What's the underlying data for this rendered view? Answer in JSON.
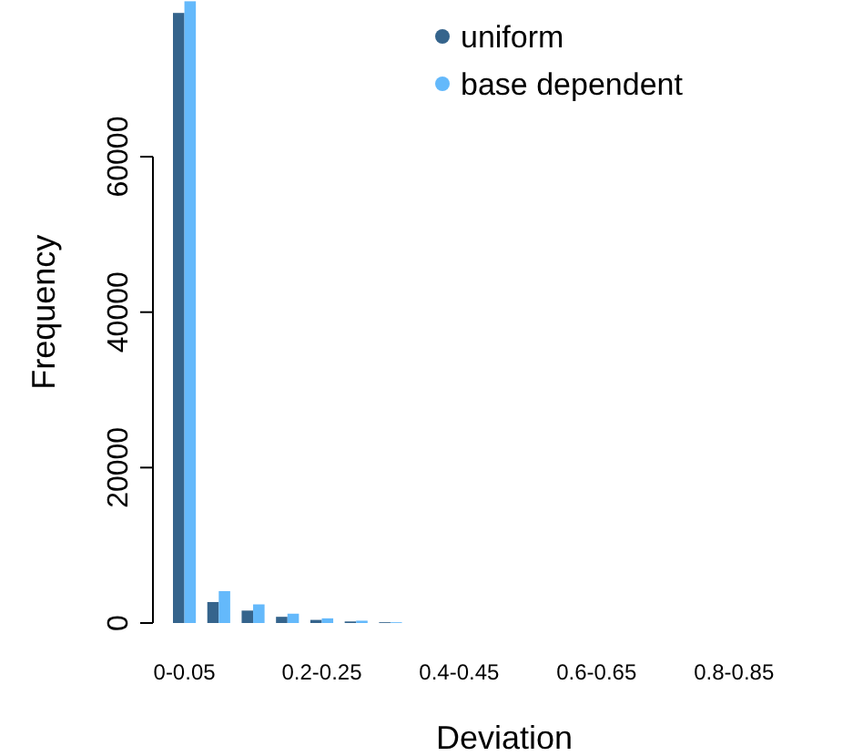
{
  "chart_data": {
    "type": "bar",
    "xlabel": "Deviation",
    "ylabel": "Frequency",
    "categories": [
      "0-0.05",
      null,
      null,
      null,
      "0.2-0.25",
      null,
      null,
      null,
      "0.4-0.45",
      null,
      null,
      null,
      "0.6-0.65",
      null,
      null,
      null,
      "0.8-0.85",
      null,
      null,
      null
    ],
    "series": [
      {
        "name": "uniform",
        "color": "#35648c",
        "values": [
          78500,
          2700,
          1600,
          800,
          400,
          200,
          100,
          0,
          0,
          0,
          0,
          0,
          0,
          0,
          0,
          0,
          0,
          0,
          0,
          0
        ]
      },
      {
        "name": "base dependent",
        "color": "#64b9fb",
        "values": [
          80000,
          4100,
          2400,
          1200,
          600,
          300,
          100,
          0,
          0,
          0,
          0,
          0,
          0,
          0,
          0,
          0,
          0,
          0,
          0,
          0
        ]
      }
    ],
    "ylim": [
      0,
      80000
    ],
    "yticks": [
      0,
      20000,
      40000,
      60000
    ],
    "grid": false,
    "legend": "top right",
    "marker": "circle"
  }
}
